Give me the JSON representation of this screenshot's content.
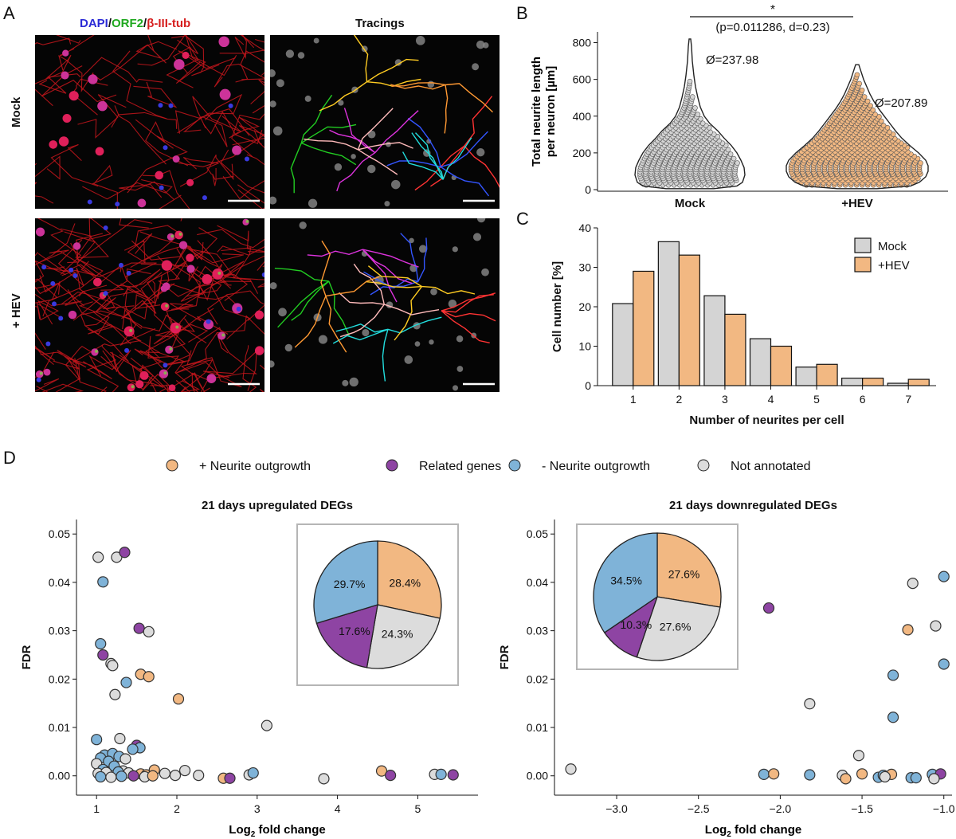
{
  "panel_labels": {
    "a": "A",
    "b": "B",
    "c": "C",
    "d": "D"
  },
  "panel_a": {
    "stain_dapi": "DAPI",
    "stain_sep1": "/",
    "stain_orf2": "ORF2",
    "stain_sep2": "/",
    "stain_tub": "β-III-tub",
    "tracings_title": "Tracings",
    "row_mock": "Mock",
    "row_hev": "+ HEV",
    "colors": {
      "dapi": "#2b2bd6",
      "orf2": "#1fa81f",
      "tub": "#d61f1f"
    }
  },
  "chart_data": [
    {
      "id": "B",
      "type": "violin",
      "ylabel": "Total neurite length per neuron [µm]",
      "ylabel_line1": "Total neurite length",
      "ylabel_line2": "per neuron [µm]",
      "categories": [
        "Mock",
        "+HEV"
      ],
      "means": [
        "Ø=237.98",
        "Ø=207.89"
      ],
      "mean_values": [
        237.98,
        207.89
      ],
      "ylim": [
        0,
        850
      ],
      "yticks": [
        0,
        200,
        400,
        600,
        800
      ],
      "significance": "*",
      "stat_text": "(p=0.011286, d=0.23)",
      "colors": {
        "Mock": "#d4d4d4",
        "+HEV": "#f2b882"
      }
    },
    {
      "id": "C",
      "type": "bar",
      "title": "",
      "xlabel": "Number of neurites per cell",
      "ylabel": "Cell number [%]",
      "categories": [
        "1",
        "2",
        "3",
        "4",
        "5",
        "6",
        "7"
      ],
      "series": [
        {
          "name": "Mock",
          "values": [
            20.8,
            36.5,
            22.8,
            11.9,
            4.7,
            1.9,
            0.6
          ],
          "color": "#d4d4d4"
        },
        {
          "name": "+HEV",
          "values": [
            29.0,
            33.1,
            18.1,
            10.0,
            5.4,
            1.9,
            1.6
          ],
          "color": "#f2b882"
        }
      ],
      "ylim": [
        0,
        40
      ],
      "yticks": [
        0,
        10,
        20,
        30,
        40
      ],
      "legend_position": "top-right"
    },
    {
      "id": "D-left",
      "type": "scatter",
      "title": "21 days upregulated DEGs",
      "xlabel_prefix": "Log",
      "xlabel_sub": "2",
      "xlabel_suffix": " fold change",
      "ylabel": "FDR",
      "xlim": [
        0.75,
        5.75
      ],
      "ylim": [
        -0.004,
        0.053
      ],
      "xticks": [
        1,
        2,
        3,
        4,
        5
      ],
      "yticks": [
        0.0,
        0.01,
        0.02,
        0.03,
        0.04,
        0.05
      ],
      "ytick_labels": [
        "0.00",
        "0.01",
        "0.02",
        "0.03",
        "0.04",
        "0.05"
      ],
      "points": [
        [
          1.02,
          0.0452,
          "na"
        ],
        [
          1.25,
          0.0452,
          "na"
        ],
        [
          1.35,
          0.0462,
          "rel"
        ],
        [
          1.08,
          0.0401,
          "neg"
        ],
        [
          1.05,
          0.0273,
          "neg"
        ],
        [
          1.08,
          0.025,
          "rel"
        ],
        [
          1.18,
          0.0232,
          "na"
        ],
        [
          1.2,
          0.0228,
          "na"
        ],
        [
          1.53,
          0.0305,
          "rel"
        ],
        [
          1.65,
          0.0298,
          "na"
        ],
        [
          1.55,
          0.021,
          "pos"
        ],
        [
          1.65,
          0.0205,
          "pos"
        ],
        [
          1.37,
          0.0193,
          "neg"
        ],
        [
          1.23,
          0.0168,
          "na"
        ],
        [
          2.02,
          0.0159,
          "pos"
        ],
        [
          3.12,
          0.0104,
          "na"
        ],
        [
          1.0,
          0.0075,
          "neg"
        ],
        [
          1.29,
          0.0077,
          "na"
        ],
        [
          1.5,
          0.0063,
          "rel"
        ],
        [
          1.54,
          0.0058,
          "neg"
        ],
        [
          1.45,
          0.0055,
          "neg"
        ],
        [
          1.1,
          0.0043,
          "neg"
        ],
        [
          1.2,
          0.0046,
          "neg"
        ],
        [
          1.05,
          0.0037,
          "neg"
        ],
        [
          1.28,
          0.004,
          "neg"
        ],
        [
          1.36,
          0.0035,
          "na"
        ],
        [
          1.15,
          0.003,
          "neg"
        ],
        [
          1.0,
          0.0025,
          "na"
        ],
        [
          1.22,
          0.002,
          "neg"
        ],
        [
          1.08,
          0.0013,
          "neg"
        ],
        [
          1.33,
          0.001,
          "na"
        ],
        [
          1.02,
          0.0005,
          "na"
        ],
        [
          1.12,
          0.0007,
          "na"
        ],
        [
          1.27,
          0.0008,
          "neg"
        ],
        [
          1.4,
          0.0006,
          "na"
        ],
        [
          1.55,
          0.0004,
          "pos"
        ],
        [
          1.62,
          0.0002,
          "pos"
        ],
        [
          1.72,
          0.0012,
          "pos"
        ],
        [
          1.85,
          0.0005,
          "na"
        ],
        [
          1.98,
          0.0001,
          "na"
        ],
        [
          2.1,
          0.0011,
          "na"
        ],
        [
          2.27,
          0.0001,
          "na"
        ],
        [
          2.58,
          -0.0005,
          "pos"
        ],
        [
          2.66,
          -0.0005,
          "rel"
        ],
        [
          2.9,
          0.0002,
          "na"
        ],
        [
          2.95,
          0.0006,
          "neg"
        ],
        [
          3.83,
          -0.0006,
          "na"
        ],
        [
          4.55,
          0.001,
          "pos"
        ],
        [
          4.66,
          0.0001,
          "rel"
        ],
        [
          5.21,
          0.0003,
          "na"
        ],
        [
          5.29,
          0.0003,
          "neg"
        ],
        [
          5.44,
          0.0002,
          "rel"
        ],
        [
          1.05,
          -0.0002,
          "neg"
        ],
        [
          1.18,
          -0.0003,
          "na"
        ],
        [
          1.31,
          -0.0001,
          "neg"
        ],
        [
          1.46,
          0.0,
          "rel"
        ],
        [
          1.6,
          -0.0002,
          "na"
        ],
        [
          1.7,
          0.0,
          "pos"
        ]
      ],
      "pie": [
        {
          "label": "28.4%",
          "value": 28.4,
          "cat": "pos"
        },
        {
          "label": "24.3%",
          "value": 24.3,
          "cat": "na"
        },
        {
          "label": "17.6%",
          "value": 17.6,
          "cat": "rel"
        },
        {
          "label": "29.7%",
          "value": 29.7,
          "cat": "neg"
        }
      ]
    },
    {
      "id": "D-right",
      "type": "scatter",
      "title": "21 days downregulated DEGs",
      "xlabel_prefix": "Log",
      "xlabel_sub": "2",
      "xlabel_suffix": " fold change",
      "ylabel": "FDR",
      "xlim": [
        -3.38,
        -0.95
      ],
      "ylim": [
        -0.004,
        0.053
      ],
      "xticks": [
        -3.0,
        -2.5,
        -2.0,
        -1.5,
        -1.0
      ],
      "xtick_labels": [
        "−3.0",
        "−2.5",
        "−2.0",
        "−1.5",
        "−1.0"
      ],
      "yticks": [
        0.0,
        0.01,
        0.02,
        0.03,
        0.04,
        0.05
      ],
      "ytick_labels": [
        "0.00",
        "0.01",
        "0.02",
        "0.03",
        "0.04",
        "0.05"
      ],
      "points": [
        [
          -3.28,
          0.0014,
          "na"
        ],
        [
          -2.07,
          0.0347,
          "rel"
        ],
        [
          -1.82,
          0.0149,
          "na"
        ],
        [
          -1.52,
          0.0042,
          "na"
        ],
        [
          -1.19,
          0.0398,
          "na"
        ],
        [
          -1.22,
          0.0302,
          "pos"
        ],
        [
          -1.05,
          0.031,
          "na"
        ],
        [
          -1.0,
          0.0412,
          "neg"
        ],
        [
          -1.31,
          0.0208,
          "neg"
        ],
        [
          -1.0,
          0.0231,
          "neg"
        ],
        [
          -1.31,
          0.0121,
          "neg"
        ],
        [
          -2.1,
          0.0003,
          "neg"
        ],
        [
          -2.04,
          0.0004,
          "pos"
        ],
        [
          -1.82,
          0.0002,
          "neg"
        ],
        [
          -1.62,
          0.0001,
          "na"
        ],
        [
          -1.6,
          -0.0006,
          "pos"
        ],
        [
          -1.5,
          0.0004,
          "pos"
        ],
        [
          -1.4,
          -0.0003,
          "neg"
        ],
        [
          -1.37,
          0.0001,
          "neg"
        ],
        [
          -1.32,
          0.0003,
          "pos"
        ],
        [
          -1.36,
          -0.0002,
          "na"
        ],
        [
          -1.2,
          -0.0004,
          "neg"
        ],
        [
          -1.17,
          -0.0004,
          "neg"
        ],
        [
          -1.07,
          0.0003,
          "neg"
        ],
        [
          -1.02,
          0.0004,
          "rel"
        ],
        [
          -1.06,
          -0.0006,
          "na"
        ]
      ],
      "pie": [
        {
          "label": "27.6%",
          "value": 27.6,
          "cat": "pos"
        },
        {
          "label": "27.6%",
          "value": 27.6,
          "cat": "na"
        },
        {
          "label": "10.3%",
          "value": 10.3,
          "cat": "rel"
        },
        {
          "label": "34.5%",
          "value": 34.5,
          "cat": "neg"
        }
      ]
    }
  ],
  "legend_d": [
    {
      "label": "+ Neurite outgrowth",
      "cat": "pos"
    },
    {
      "label": "Related genes",
      "cat": "rel"
    },
    {
      "label": "- Neurite outgrowth",
      "cat": "neg"
    },
    {
      "label": "Not annotated",
      "cat": "na"
    }
  ],
  "category_colors": {
    "pos": "#f2b882",
    "rel": "#8e44a3",
    "neg": "#7fb3d8",
    "na": "#dcdcdc"
  },
  "trace_colors": [
    "#ff3333",
    "#3355ff",
    "#22cc22",
    "#22dddd",
    "#dd33dd",
    "#ffcc22",
    "#ffbbbb",
    "#ff9933"
  ]
}
